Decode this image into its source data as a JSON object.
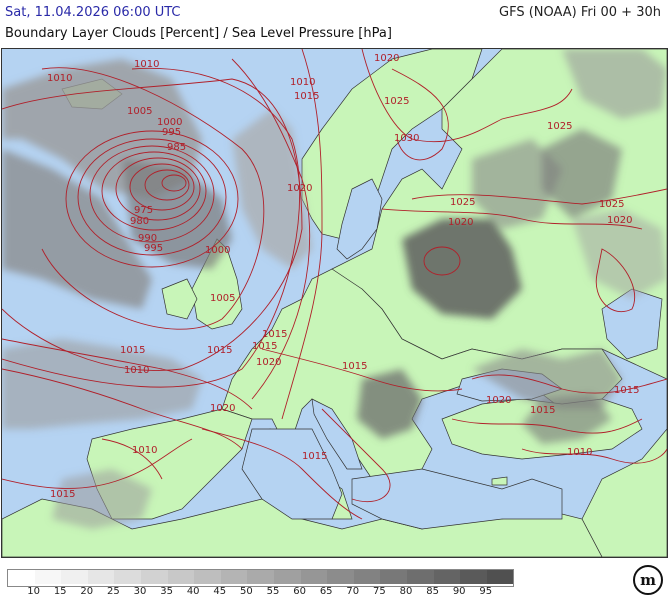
{
  "header": {
    "datetime": "Sat, 11.04.2026 06:00 UTC",
    "model": "GFS (NOAA) Fri 00 + 30h",
    "product": "Boundary Layer Clouds [Percent] / Sea Level Pressure [hPa]"
  },
  "colors": {
    "sea": "#b5d3f2",
    "land": "#c8f5b8",
    "isobar": "#b0202a",
    "cloud_dark": "#5a5a5a",
    "title": "#2a2aa8"
  },
  "isobar_labels": [
    "1010",
    "1010",
    "1005",
    "1000",
    "995",
    "985",
    "975",
    "980",
    "990",
    "995",
    "1000",
    "1005",
    "1010",
    "1015",
    "1020",
    "1025",
    "1030",
    "1020",
    "1020",
    "1025",
    "1025",
    "1020",
    "1015",
    "1010",
    "1015",
    "1020",
    "1015",
    "1020",
    "1015",
    "1015",
    "1015",
    "1010",
    "1015",
    "1020",
    "1010",
    "1015",
    "1015",
    "1025"
  ],
  "legend": {
    "ticks": [
      "10",
      "15",
      "20",
      "25",
      "30",
      "35",
      "40",
      "45",
      "50",
      "55",
      "60",
      "65",
      "70",
      "75",
      "80",
      "85",
      "90",
      "95"
    ],
    "colors": [
      "#ffffff",
      "#f7f7f7",
      "#f0f0f0",
      "#e6e6e6",
      "#dcdcdc",
      "#d2d2d2",
      "#c8c8c8",
      "#bebebe",
      "#b4b4b4",
      "#aaaaaa",
      "#a0a0a0",
      "#969696",
      "#8c8c8c",
      "#828282",
      "#787878",
      "#6e6e6e",
      "#646464",
      "#5a5a5a",
      "#505050"
    ]
  },
  "logo": {
    "text": "m"
  }
}
